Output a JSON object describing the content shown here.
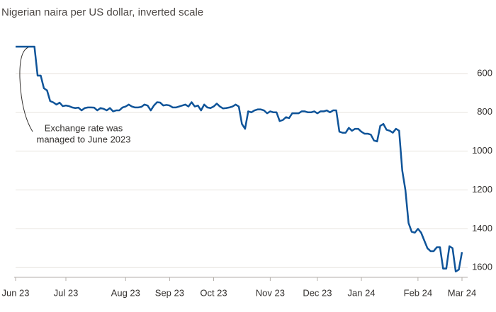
{
  "chart_data": {
    "type": "line",
    "title": "Nigerian naira per US dollar, inverted scale",
    "annotation": [
      "Exchange rate was",
      "managed to June 2023"
    ],
    "categories": [
      "Jun 23",
      null,
      null,
      null,
      null,
      null,
      null,
      null,
      null,
      null,
      null,
      null,
      null,
      null,
      null,
      null,
      "Jul 23",
      null,
      null,
      null,
      null,
      null,
      null,
      null,
      null,
      null,
      null,
      null,
      null,
      null,
      null,
      null,
      null,
      null,
      null,
      "Aug 23",
      null,
      null,
      null,
      null,
      null,
      null,
      null,
      null,
      null,
      null,
      null,
      null,
      null,
      "Sep 23",
      null,
      null,
      null,
      null,
      null,
      null,
      null,
      null,
      null,
      null,
      null,
      null,
      null,
      "Oct 23",
      null,
      null,
      null,
      null,
      null,
      null,
      null,
      null,
      null,
      null,
      null,
      null,
      null,
      null,
      null,
      null,
      null,
      "Nov 23",
      null,
      null,
      null,
      null,
      null,
      null,
      null,
      null,
      null,
      null,
      null,
      null,
      null,
      null,
      "Dec 23",
      null,
      null,
      null,
      null,
      null,
      null,
      null,
      null,
      null,
      null,
      null,
      null,
      null,
      "Jan 24",
      null,
      null,
      null,
      null,
      null,
      null,
      null,
      null,
      null,
      null,
      null,
      null,
      null,
      null,
      null,
      null,
      null,
      "Feb 24",
      null,
      null,
      null,
      null,
      null,
      null,
      null,
      null,
      null,
      null,
      null,
      null,
      null,
      "Mar 24"
    ],
    "series": [
      {
        "name": "Naira per US dollar",
        "color": "#0f5499",
        "values": [
          462,
          462,
          462,
          462,
          462,
          462,
          462,
          611,
          611,
          676,
          687,
          742,
          749,
          760,
          750,
          768,
          765,
          768,
          775,
          778,
          776,
          790,
          778,
          775,
          775,
          776,
          790,
          778,
          782,
          790,
          778,
          795,
          790,
          790,
          775,
          770,
          760,
          770,
          775,
          775,
          772,
          760,
          765,
          790,
          765,
          748,
          750,
          765,
          762,
          765,
          775,
          775,
          770,
          765,
          760,
          770,
          748,
          770,
          765,
          790,
          760,
          775,
          778,
          770,
          755,
          770,
          780,
          778,
          775,
          770,
          760,
          770,
          860,
          885,
          795,
          800,
          790,
          785,
          785,
          790,
          805,
          795,
          800,
          800,
          845,
          840,
          825,
          830,
          805,
          805,
          805,
          795,
          795,
          800,
          800,
          795,
          805,
          795,
          795,
          790,
          800,
          790,
          790,
          900,
          905,
          905,
          880,
          895,
          885,
          885,
          900,
          910,
          910,
          915,
          945,
          950,
          870,
          860,
          890,
          895,
          905,
          885,
          895,
          1100,
          1200,
          1370,
          1415,
          1420,
          1400,
          1420,
          1460,
          1500,
          1515,
          1515,
          1495,
          1495,
          1605,
          1605,
          1490,
          1500,
          1620,
          1610,
          1520
        ]
      }
    ],
    "ylim": [
      400,
      1650
    ],
    "yticks": [
      600,
      800,
      1000,
      1200,
      1400,
      1600
    ],
    "inverted": true,
    "grid": true
  }
}
